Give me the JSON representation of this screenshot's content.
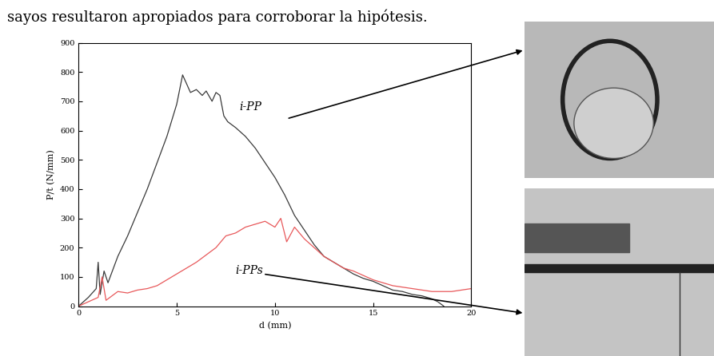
{
  "header": "sayos resultaron apropiados para corroborar la hipótesis.",
  "chart_data": {
    "type": "line",
    "x_label": "d (mm)",
    "y_label": "P/t (N/mm)",
    "xlim": [
      0,
      20
    ],
    "xticks": [
      0,
      5,
      10,
      15,
      20
    ],
    "ylim": [
      0,
      900
    ],
    "yticks": [
      0,
      100,
      200,
      300,
      400,
      500,
      600,
      700,
      800,
      900
    ],
    "grid": false,
    "series": [
      {
        "name": "i-PP",
        "color": "#3a3a3a",
        "x": [
          0,
          0.5,
          0.9,
          1.0,
          1.1,
          1.3,
          1.5,
          2.0,
          2.5,
          3.0,
          3.5,
          4.0,
          4.5,
          5.0,
          5.3,
          5.5,
          5.7,
          6.0,
          6.3,
          6.5,
          6.8,
          7.0,
          7.2,
          7.4,
          7.6,
          8.0,
          8.5,
          9.0,
          9.5,
          10.0,
          10.5,
          11.0,
          11.5,
          12.0,
          12.5,
          13.0,
          13.5,
          14.0,
          14.5,
          15.0,
          15.5,
          16.0,
          16.5,
          17.0,
          17.5,
          18.0,
          18.3,
          18.6
        ],
        "values": [
          0,
          30,
          60,
          150,
          40,
          120,
          80,
          170,
          240,
          320,
          400,
          490,
          580,
          690,
          790,
          760,
          730,
          740,
          720,
          735,
          700,
          730,
          720,
          650,
          630,
          610,
          580,
          540,
          490,
          440,
          380,
          310,
          260,
          210,
          170,
          150,
          130,
          110,
          95,
          85,
          70,
          55,
          50,
          40,
          35,
          25,
          15,
          0
        ]
      },
      {
        "name": "i-PPs",
        "color": "#e8585a",
        "x": [
          0,
          0.5,
          1.0,
          1.2,
          1.4,
          2.0,
          2.5,
          3.0,
          3.5,
          4.0,
          4.5,
          5.0,
          5.5,
          6.0,
          6.5,
          7.0,
          7.5,
          8.0,
          8.5,
          9.0,
          9.5,
          10.0,
          10.3,
          10.6,
          11.0,
          11.5,
          12.0,
          12.5,
          13.0,
          13.5,
          14.0,
          14.5,
          15.0,
          16.0,
          17.0,
          18.0,
          19.0,
          20.0
        ],
        "values": [
          0,
          15,
          30,
          100,
          20,
          50,
          45,
          55,
          60,
          70,
          90,
          110,
          130,
          150,
          175,
          200,
          240,
          250,
          270,
          280,
          290,
          270,
          300,
          220,
          270,
          230,
          200,
          170,
          150,
          130,
          120,
          105,
          90,
          70,
          60,
          50,
          50,
          60
        ]
      }
    ]
  }
}
